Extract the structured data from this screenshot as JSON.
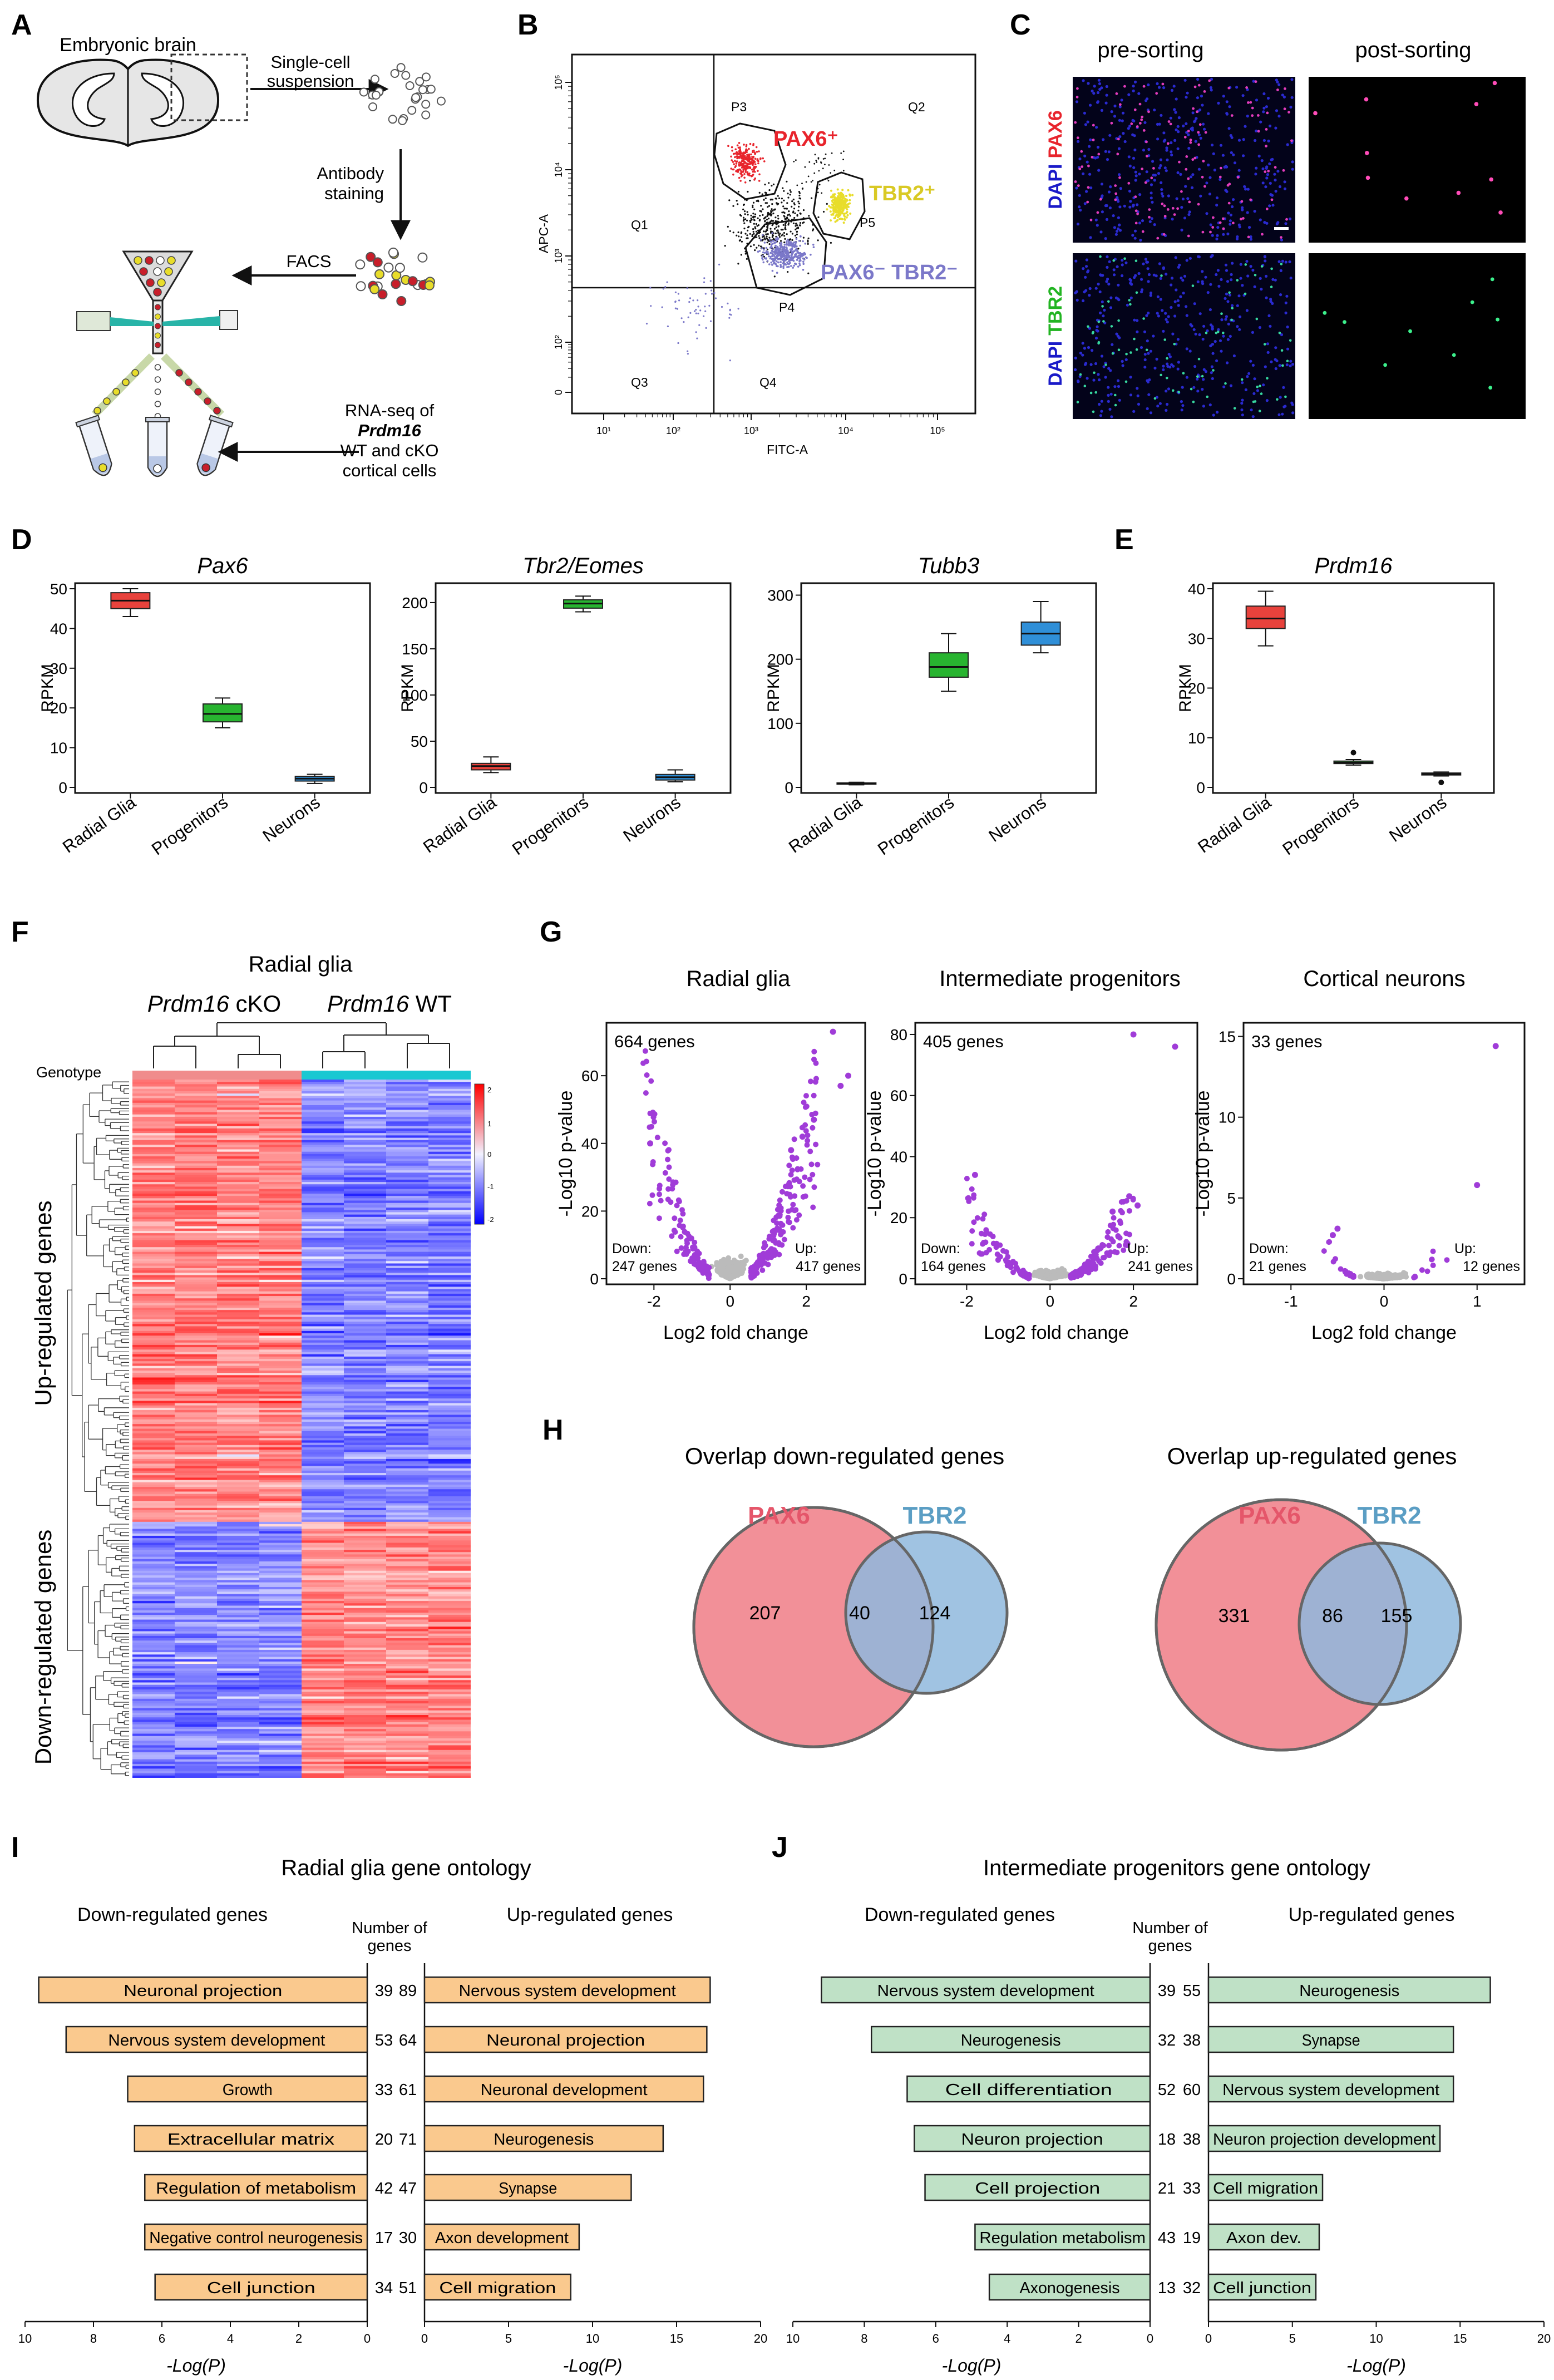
{
  "panel_letters": {
    "a": "A",
    "b": "B",
    "c": "C",
    "d": "D",
    "e": "E",
    "f": "F",
    "g": "G",
    "h": "H",
    "i": "I",
    "j": "J"
  },
  "panel_a": {
    "brain_label": "Embryonic brain",
    "step1": [
      "Single-cell",
      "suspension"
    ],
    "step2": [
      "Antibody",
      "staining"
    ],
    "step3": "FACS",
    "step4": [
      "RNA-seq of",
      "Prdm16",
      "WT and cKO",
      "cortical cells"
    ]
  },
  "panel_b": {
    "xlabel": "FITC-A",
    "ylabel": "APC-A",
    "x_ticks": [
      "10¹",
      "10²",
      "10³",
      "10⁴",
      "10⁵"
    ],
    "y_ticks": [
      "0",
      "10²",
      "10³",
      "10⁴",
      "10⁵"
    ],
    "quadrants": [
      "Q1",
      "Q2",
      "Q3",
      "Q4"
    ],
    "gates": [
      "P3",
      "P4",
      "P5"
    ],
    "pop_pax6": "PAX6⁺",
    "pop_tbr2": "TBR2⁺",
    "pop_neg": "PAX6⁻ TBR2⁻",
    "colors": {
      "pax6": "#e8242c",
      "tbr2": "#e8dd2a",
      "neg": "#7b78c9",
      "other": "#111111"
    }
  },
  "panel_c": {
    "col1": "pre-sorting",
    "col2": "post-sorting",
    "row1_dapi": "DAPI",
    "row1_marker": "PAX6",
    "row2_dapi": "DAPI",
    "row2_marker": "TBR2"
  },
  "panel_f": {
    "title": "Radial glia",
    "group1_gene": "Prdm16",
    "group1_suffix": " cKO",
    "group2_gene": "Prdm16",
    "group2_suffix": " WT",
    "genotype_label": "Genotype",
    "row_label_up": "Up-regulated genes",
    "row_label_down": "Down-regulated genes",
    "scale_ticks": [
      "2",
      "1",
      "0",
      "-1",
      "-2"
    ],
    "colors": {
      "high": "#ff0000",
      "low": "#0000ff",
      "mid": "#e8e8ff",
      "cko": "#f08c8c",
      "wt": "#19c8d2"
    }
  },
  "panel_h": {
    "left_title": "Overlap down-regulated genes",
    "right_title": "Overlap up-regulated genes",
    "set_a": "PAX6",
    "set_b": "TBR2",
    "left_values": {
      "only_a": "207",
      "both": "40",
      "only_b": "124"
    },
    "right_values": {
      "only_a": "331",
      "both": "86",
      "only_b": "155"
    },
    "colors": {
      "a": "#f07d86",
      "b": "#8fb9dd",
      "a_label": "#e5566a",
      "b_label": "#5b9ec4"
    }
  },
  "chart_data": [
    {
      "panel": "D",
      "type": "box",
      "title": "Pax6",
      "ylabel": "RPKM",
      "categories": [
        "Radial Glia",
        "Progenitors",
        "Neurons"
      ],
      "ylim": [
        0,
        50
      ],
      "y_ticks": [
        0,
        10,
        20,
        30,
        40,
        50
      ],
      "colors": [
        "#e8423c",
        "#28b430",
        "#2f8fd8"
      ],
      "boxes": [
        {
          "min": 43,
          "q1": 45,
          "median": 47,
          "q3": 49,
          "max": 50
        },
        {
          "min": 15,
          "q1": 16.5,
          "median": 18.5,
          "q3": 21,
          "max": 22.5
        },
        {
          "min": 1,
          "q1": 1.6,
          "median": 2.2,
          "q3": 2.8,
          "max": 3.3
        }
      ]
    },
    {
      "panel": "D",
      "type": "box",
      "title": "Tbr2/Eomes",
      "ylabel": "RPKM",
      "categories": [
        "Radial Glia",
        "Progenitors",
        "Neurons"
      ],
      "ylim": [
        0,
        215
      ],
      "y_ticks": [
        0,
        50,
        100,
        150,
        200
      ],
      "colors": [
        "#e8423c",
        "#28b430",
        "#2f8fd8"
      ],
      "boxes": [
        {
          "min": 16,
          "q1": 19,
          "median": 23,
          "q3": 26,
          "max": 33
        },
        {
          "min": 190,
          "q1": 194,
          "median": 199,
          "q3": 203,
          "max": 207
        },
        {
          "min": 6,
          "q1": 8,
          "median": 11,
          "q3": 14,
          "max": 19
        }
      ]
    },
    {
      "panel": "D",
      "type": "box",
      "title": "Tubb3",
      "ylabel": "RPKM",
      "categories": [
        "Radial Glia",
        "Progenitors",
        "Neurons"
      ],
      "ylim": [
        0,
        310
      ],
      "y_ticks": [
        0,
        100,
        200,
        300
      ],
      "colors": [
        "#e8423c",
        "#28b430",
        "#2f8fd8"
      ],
      "boxes": [
        {
          "min": 4,
          "q1": 5,
          "median": 6,
          "q3": 7,
          "max": 8
        },
        {
          "min": 150,
          "q1": 172,
          "median": 188,
          "q3": 210,
          "max": 240
        },
        {
          "min": 210,
          "q1": 222,
          "median": 240,
          "q3": 258,
          "max": 290
        }
      ]
    },
    {
      "panel": "E",
      "type": "box",
      "title": "Prdm16",
      "ylabel": "RPKM",
      "categories": [
        "Radial Glia",
        "Progenitors",
        "Neurons"
      ],
      "ylim": [
        0,
        40
      ],
      "y_ticks": [
        0,
        10,
        20,
        30,
        40
      ],
      "colors": [
        "#e8423c",
        "#28b430",
        "#2f8fd8"
      ],
      "boxes": [
        {
          "min": 28.5,
          "q1": 32,
          "median": 34,
          "q3": 36.5,
          "max": 39.5
        },
        {
          "min": 4.5,
          "q1": 4.8,
          "median": 5,
          "q3": 5.3,
          "max": 5.6,
          "outliers": [
            7
          ]
        },
        {
          "min": 2.3,
          "q1": 2.5,
          "median": 2.7,
          "q3": 2.9,
          "max": 3.1,
          "outliers": [
            1
          ]
        }
      ]
    },
    {
      "panel": "G",
      "type": "scatter",
      "title": "Radial glia",
      "xlabel": "Log2 fold change",
      "ylabel": "-Log10 p-value",
      "xlim": [
        -3.1,
        3.4
      ],
      "ylim": [
        0,
        74
      ],
      "x_ticks": [
        -2,
        0,
        2
      ],
      "y_ticks": [
        0,
        20,
        40,
        60
      ],
      "count_label": "664 genes",
      "down_label": [
        "Down:",
        "247 genes"
      ],
      "up_label": [
        "Up:",
        "417 genes"
      ],
      "colors": {
        "sig": "#a03cd8",
        "ns": "#bbbbbb"
      },
      "seed": 11,
      "n_ns": 260,
      "n_down": 120,
      "n_up": 190,
      "threshold": 0.55,
      "spread": 2.3,
      "ymax": 55,
      "highlights": [
        [
          2.7,
          73
        ],
        [
          3.1,
          60
        ],
        [
          2.9,
          57
        ],
        [
          -2.1,
          40
        ],
        [
          2.2,
          47
        ],
        [
          1.6,
          38
        ],
        [
          1.9,
          42
        ]
      ]
    },
    {
      "panel": "G",
      "type": "scatter",
      "title": "Intermediate progenitors",
      "xlabel": "Log2 fold change",
      "ylabel": "-Log10 p-value",
      "xlim": [
        -3.1,
        3.4
      ],
      "ylim": [
        0,
        82
      ],
      "x_ticks": [
        -2,
        0,
        2
      ],
      "y_ticks": [
        0,
        20,
        40,
        60,
        80
      ],
      "count_label": "405 genes",
      "down_label": [
        "Down:",
        "164 genes"
      ],
      "up_label": [
        "Up:",
        "241 genes"
      ],
      "colors": {
        "sig": "#a03cd8",
        "ns": "#bbbbbb"
      },
      "seed": 23,
      "n_ns": 240,
      "n_down": 80,
      "n_up": 120,
      "threshold": 0.5,
      "spread": 2.0,
      "ymax": 26,
      "highlights": [
        [
          2.0,
          80
        ],
        [
          3.0,
          76
        ],
        [
          -1.8,
          34
        ],
        [
          1.9,
          27
        ],
        [
          1.5,
          22
        ],
        [
          2.1,
          24
        ]
      ]
    },
    {
      "panel": "G",
      "type": "scatter",
      "title": "Cortical neurons",
      "xlabel": "Log2 fold change",
      "ylabel": "-Log10 p-value",
      "xlim": [
        -1.45,
        1.45
      ],
      "ylim": [
        0,
        15.5
      ],
      "x_ticks": [
        -1,
        0,
        1
      ],
      "y_ticks": [
        0,
        5,
        10,
        15
      ],
      "count_label": "33 genes",
      "down_label": [
        "Down:",
        "21 genes"
      ],
      "up_label": [
        "Up:",
        "12 genes"
      ],
      "colors": {
        "sig": "#a03cd8",
        "ns": "#bbbbbb"
      },
      "seed": 37,
      "n_ns": 260,
      "n_down": 19,
      "n_up": 10,
      "threshold": 0.32,
      "spread": 0.7,
      "ymax": 3.0,
      "highlights": [
        [
          1.2,
          14.4
        ],
        [
          1.0,
          5.8
        ],
        [
          -0.5,
          3.1
        ],
        [
          -0.55,
          2.7
        ]
      ]
    },
    {
      "panel": "I",
      "type": "bar",
      "title": "Radial glia gene ontology",
      "xlabel": "-Log(P)",
      "count_header": [
        "Number of",
        "genes"
      ],
      "left_header": "Down-regulated genes",
      "right_header": "Up-regulated genes",
      "left_xlim": [
        0,
        10
      ],
      "left_ticks": [
        10,
        8,
        6,
        4,
        2,
        0
      ],
      "right_xlim": [
        0,
        20
      ],
      "right_ticks": [
        0,
        5,
        10,
        15,
        20
      ],
      "bar_color": "#fac98e",
      "down": [
        {
          "term": "Neuronal projection",
          "value": 9.6,
          "count": "39"
        },
        {
          "term": "Nervous system development",
          "value": 8.8,
          "count": "53"
        },
        {
          "term": "Growth",
          "value": 7.0,
          "count": "33"
        },
        {
          "term": "Extracellular matrix",
          "value": 6.8,
          "count": "20"
        },
        {
          "term": "Regulation of metabolism",
          "value": 6.5,
          "count": "42"
        },
        {
          "term": "Negative control neurogenesis",
          "value": 6.5,
          "count": "17"
        },
        {
          "term": "Cell junction",
          "value": 6.2,
          "count": "34"
        }
      ],
      "up": [
        {
          "term": "Nervous system development",
          "value": 17.0,
          "count": "89"
        },
        {
          "term": "Neuronal projection",
          "value": 16.8,
          "count": "64"
        },
        {
          "term": "Neuronal development",
          "value": 16.6,
          "count": "61"
        },
        {
          "term": "Neurogenesis",
          "value": 14.2,
          "count": "71"
        },
        {
          "term": "Synapse",
          "value": 12.3,
          "count": "47"
        },
        {
          "term": "Axon development",
          "value": 9.2,
          "count": "30"
        },
        {
          "term": "Cell migration",
          "value": 8.7,
          "count": "51"
        }
      ]
    },
    {
      "panel": "J",
      "type": "bar",
      "title": "Intermediate progenitors gene ontology",
      "xlabel": "-Log(P)",
      "count_header": [
        "Number of",
        "genes"
      ],
      "left_header": "Down-regulated genes",
      "right_header": "Up-regulated genes",
      "left_xlim": [
        0,
        10
      ],
      "left_ticks": [
        10,
        8,
        6,
        4,
        2,
        0
      ],
      "right_xlim": [
        0,
        20
      ],
      "right_ticks": [
        0,
        5,
        10,
        15,
        20
      ],
      "bar_color": "#bfe1c6",
      "down": [
        {
          "term": "Nervous system development",
          "value": 9.2,
          "count": "39"
        },
        {
          "term": "Neurogenesis",
          "value": 7.8,
          "count": "32"
        },
        {
          "term": "Cell differentiation",
          "value": 6.8,
          "count": "52"
        },
        {
          "term": "Neuron projection",
          "value": 6.6,
          "count": "18"
        },
        {
          "term": "Cell projection",
          "value": 6.3,
          "count": "21"
        },
        {
          "term": "Regulation metabolism",
          "value": 4.9,
          "count": "43"
        },
        {
          "term": "Axonogenesis",
          "value": 4.5,
          "count": "13"
        }
      ],
      "up": [
        {
          "term": "Neurogenesis",
          "value": 16.8,
          "count": "55"
        },
        {
          "term": "Synapse",
          "value": 14.6,
          "count": "38"
        },
        {
          "term": "Nervous system development",
          "value": 14.6,
          "count": "60"
        },
        {
          "term": "Neuron projection development",
          "value": 13.8,
          "count": "38"
        },
        {
          "term": "Cell migration",
          "value": 6.8,
          "count": "33"
        },
        {
          "term": "Axon dev.",
          "value": 6.6,
          "count": "19"
        },
        {
          "term": "Cell junction",
          "value": 6.4,
          "count": "32"
        }
      ]
    }
  ]
}
